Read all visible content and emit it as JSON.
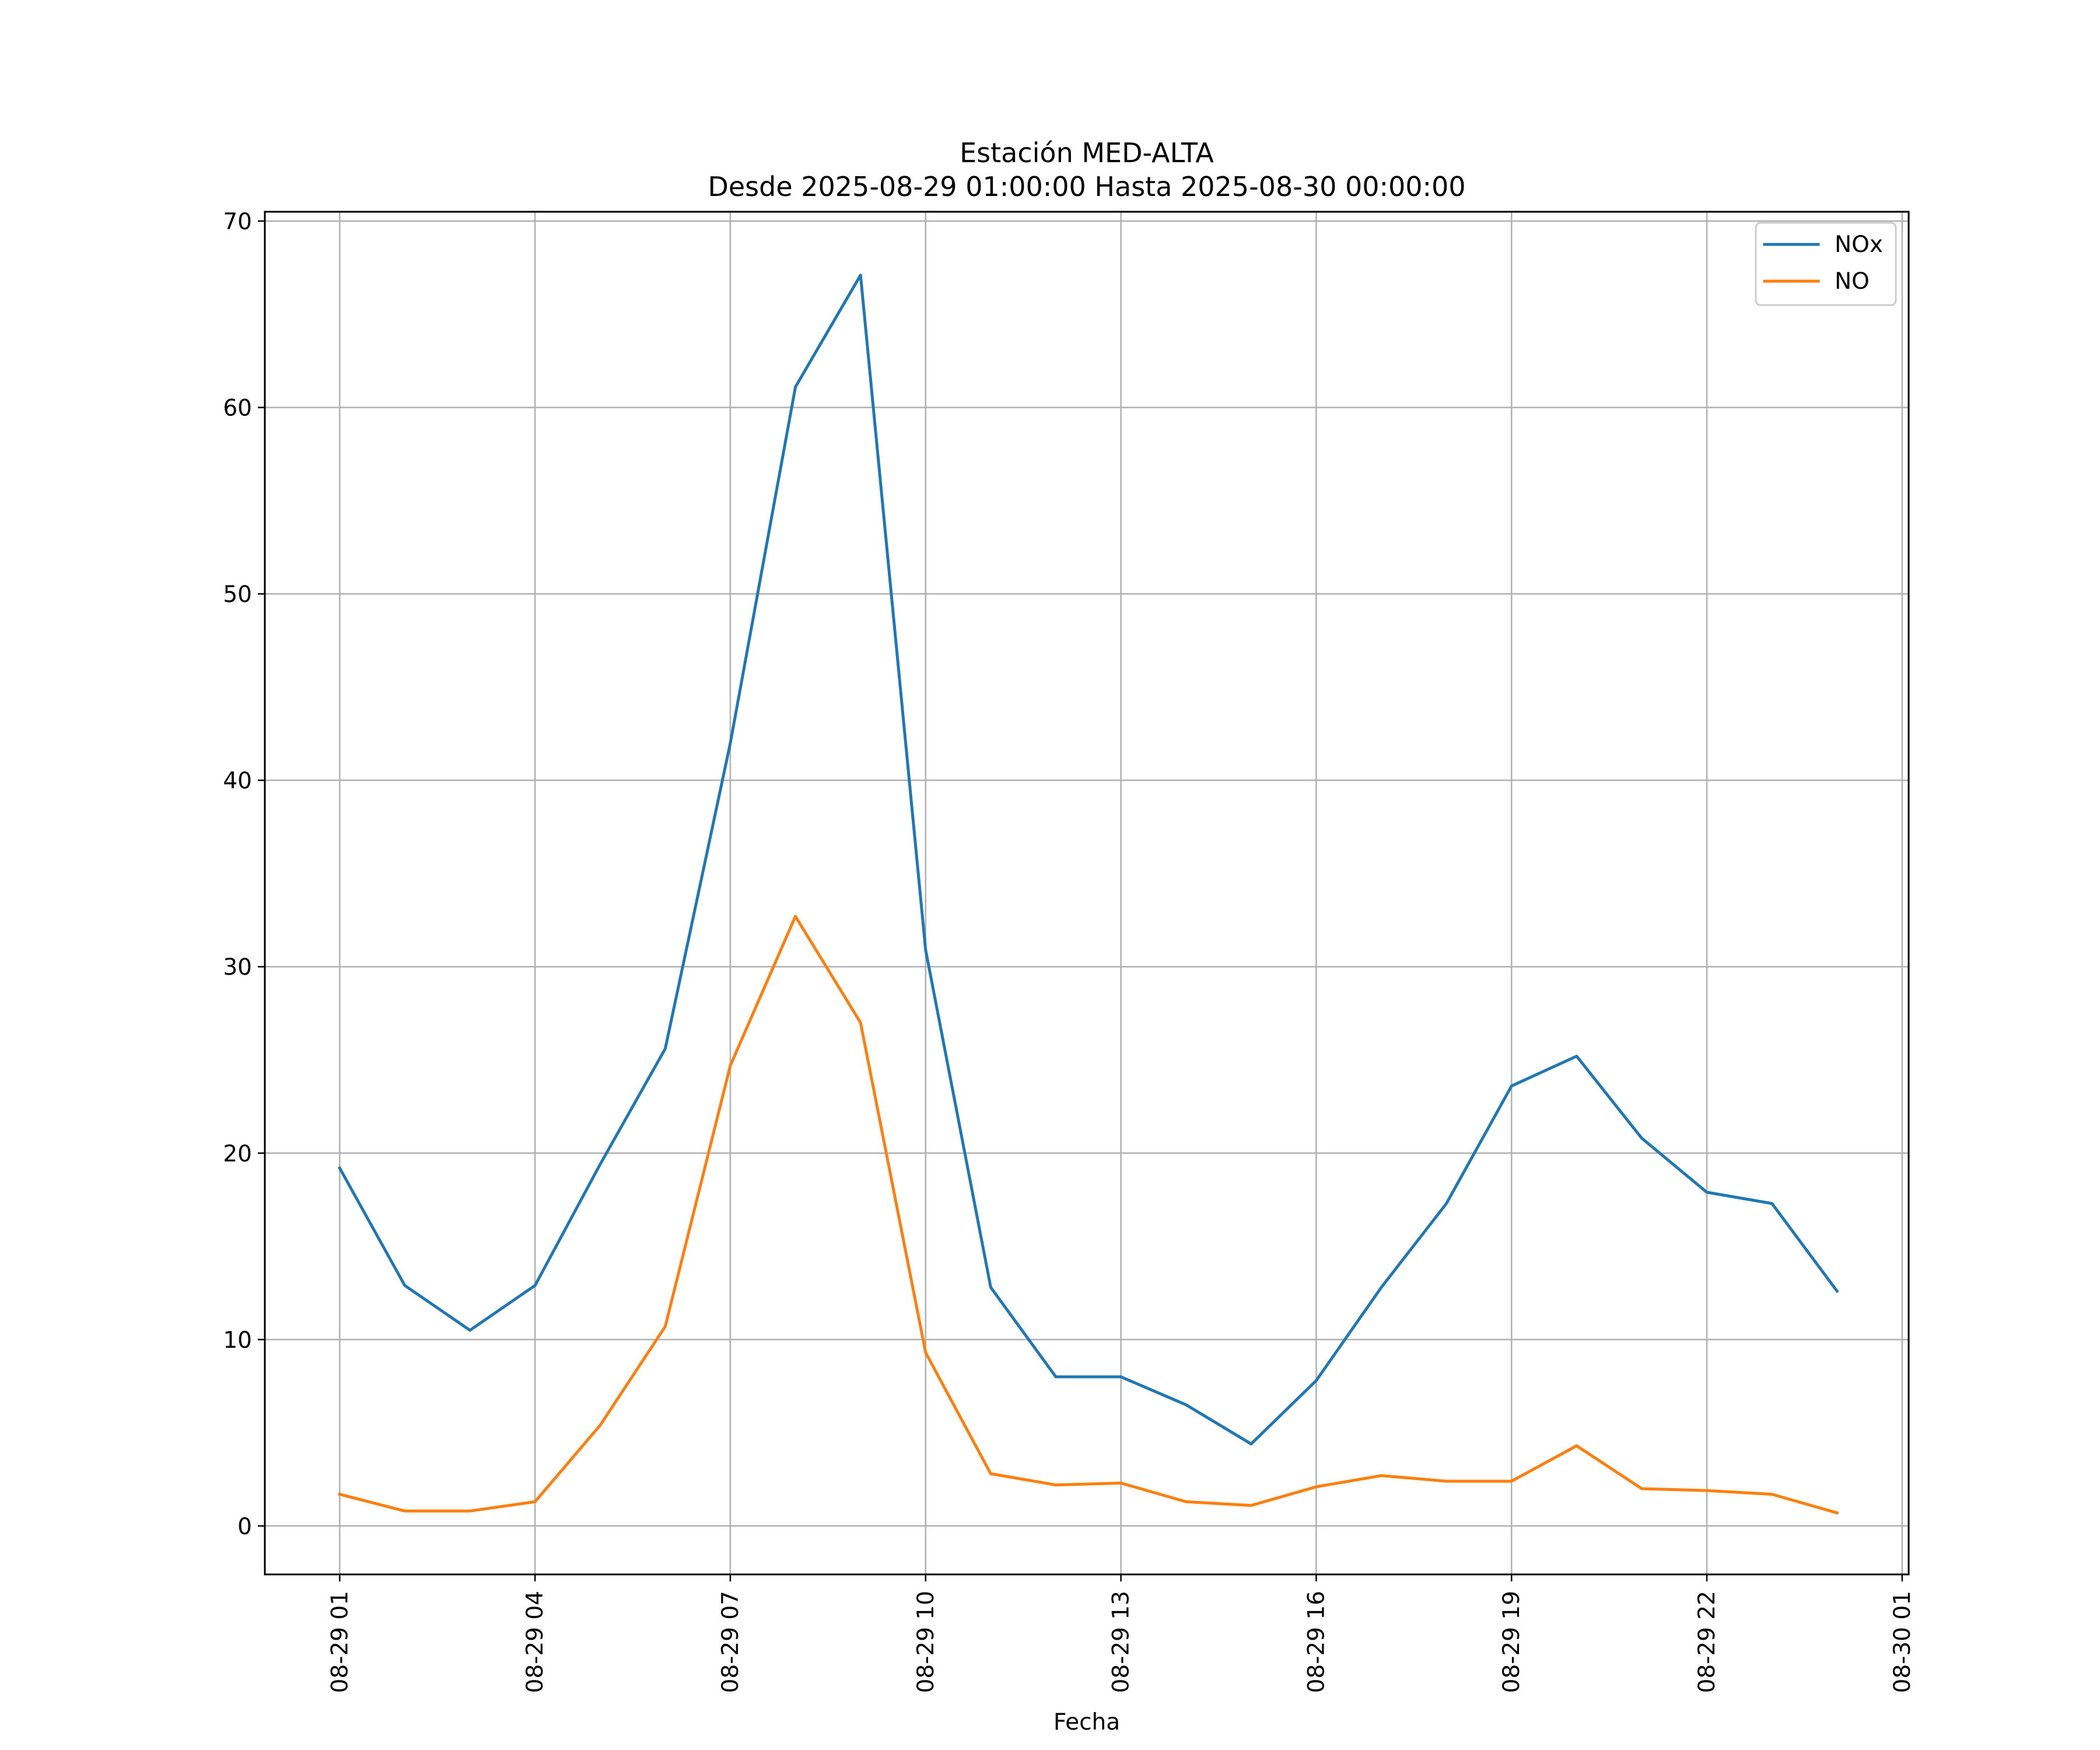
{
  "chart_data": {
    "type": "line",
    "title": "Estación MED-ALTA",
    "subtitle": "Desde 2025-08-29 01:00:00 Hasta 2025-08-30 00:00:00",
    "xlabel": "Fecha",
    "ylabel": "",
    "x": [
      "08-29 01",
      "08-29 02",
      "08-29 03",
      "08-29 04",
      "08-29 05",
      "08-29 06",
      "08-29 07",
      "08-29 08",
      "08-29 09",
      "08-29 10",
      "08-29 11",
      "08-29 12",
      "08-29 13",
      "08-29 14",
      "08-29 15",
      "08-29 16",
      "08-29 17",
      "08-29 18",
      "08-29 19",
      "08-29 20",
      "08-29 21",
      "08-29 22",
      "08-29 23",
      "08-30 00"
    ],
    "x_tick_labels": [
      "08-29 01",
      "08-29 04",
      "08-29 07",
      "08-29 10",
      "08-29 13",
      "08-29 16",
      "08-29 19",
      "08-29 22",
      "08-30 01"
    ],
    "xlim_hours": [
      -1.15,
      24.1
    ],
    "ylim": [
      -2.6,
      70.5
    ],
    "yticks": [
      0,
      10,
      20,
      30,
      40,
      50,
      60,
      70
    ],
    "grid": true,
    "legend_position": "top-right",
    "series": [
      {
        "name": "NOx",
        "color": "#1f77b4",
        "values": [
          19.2,
          12.9,
          10.5,
          12.9,
          19.4,
          25.6,
          42.0,
          61.1,
          67.1,
          30.9,
          12.8,
          8.0,
          8.0,
          6.5,
          4.4,
          7.8,
          12.8,
          17.3,
          23.6,
          25.2,
          20.8,
          17.9,
          17.3,
          12.6
        ]
      },
      {
        "name": "NO",
        "color": "#ff7f0e",
        "values": [
          1.7,
          0.8,
          0.8,
          1.3,
          5.4,
          10.7,
          24.7,
          32.7,
          27.0,
          9.3,
          2.8,
          2.2,
          2.3,
          1.3,
          1.1,
          2.1,
          2.7,
          2.4,
          2.4,
          4.3,
          2.0,
          1.9,
          1.7,
          0.7
        ]
      }
    ]
  }
}
